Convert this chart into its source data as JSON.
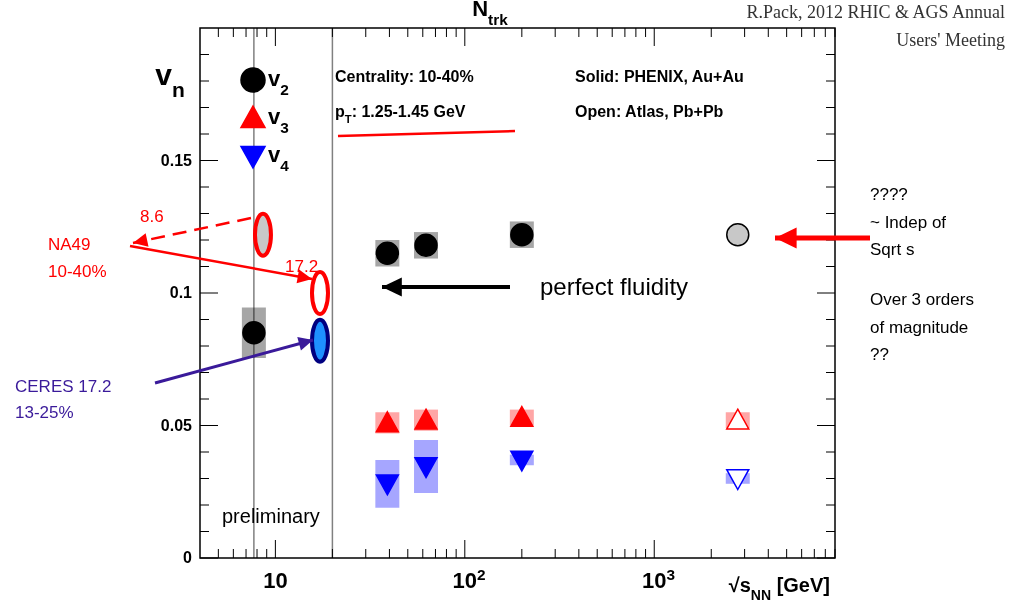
{
  "chart_data": {
    "type": "scatter",
    "title": "N$_{trk}$",
    "xlabel": "√s$_{NN}$ [GeV]",
    "ylabel": "v$_{n}$",
    "log": "x",
    "grid": false,
    "legend": "top left",
    "xlim": [
      4,
      9000
    ],
    "ylim": [
      0,
      0.2
    ],
    "xticks": [
      {
        "value": 5,
        "label": null
      },
      {
        "value": 6,
        "label": null
      },
      {
        "value": 7,
        "label": null
      },
      {
        "value": 8,
        "label": null
      },
      {
        "value": 9,
        "label": null
      },
      10,
      {
        "value": 20,
        "label": null
      },
      {
        "value": 30,
        "label": null
      },
      {
        "value": 40,
        "label": null
      },
      {
        "value": 50,
        "label": null
      },
      {
        "value": 60,
        "label": null
      },
      {
        "value": 70,
        "label": null
      },
      {
        "value": 80,
        "label": null
      },
      {
        "value": 90,
        "label": null
      },
      {
        "value": 100,
        "label": "10$^{2}$"
      },
      {
        "value": 200,
        "label": null
      },
      {
        "value": 300,
        "label": null
      },
      {
        "value": 400,
        "label": null
      },
      {
        "value": 500,
        "label": null
      },
      {
        "value": 600,
        "label": null
      },
      {
        "value": 700,
        "label": null
      },
      {
        "value": 800,
        "label": null
      },
      {
        "value": 900,
        "label": null
      },
      {
        "value": 1000,
        "label": "10$^{3}$"
      },
      {
        "value": 2000,
        "label": null
      },
      {
        "value": 3000,
        "label": null
      },
      {
        "value": 4000,
        "label": null
      },
      {
        "value": 5000,
        "label": null
      },
      {
        "value": 6000,
        "label": null
      },
      {
        "value": 7000,
        "label": null
      },
      {
        "value": 8000,
        "label": null
      },
      {
        "value": 9000,
        "label": null
      }
    ],
    "yticks": [
      0,
      {
        "value": 0.01,
        "label": null
      },
      {
        "value": 0.02,
        "label": null
      },
      {
        "value": 0.03,
        "label": null
      },
      {
        "value": 0.04,
        "label": null
      },
      0.05,
      {
        "value": 0.06,
        "label": null
      },
      {
        "value": 0.07,
        "label": null
      },
      {
        "value": 0.08,
        "label": null
      },
      {
        "value": 0.09,
        "label": null
      },
      0.1,
      {
        "value": 0.11,
        "label": null
      },
      {
        "value": 0.12,
        "label": null
      },
      {
        "value": 0.13,
        "label": null
      },
      {
        "value": 0.14,
        "label": null
      },
      0.15,
      {
        "value": 0.16,
        "label": null
      },
      {
        "value": 0.17,
        "label": null
      },
      {
        "value": 0.18,
        "label": null
      },
      {
        "value": 0.19,
        "label": null
      }
    ],
    "series": [
      {
        "name": "v$_{2}$",
        "marker": "circle",
        "color": "#000000",
        "x": [
          7.7,
          39,
          62.4,
          200
        ],
        "values": [
          0.085,
          0.115,
          0.118,
          0.122
        ],
        "errors": [
          0.0095,
          0.005,
          0.005,
          0.005
        ]
      },
      {
        "name": "v$_{3}$",
        "marker": "triangle",
        "color": "#ff0000",
        "x": [
          39,
          62.4,
          200
        ],
        "values": [
          0.051,
          0.052,
          0.053
        ],
        "errors": [
          0.004,
          0.004,
          0.003
        ]
      },
      {
        "name": "v$_{4}$",
        "marker": "triangle-down",
        "color": "#0000ff",
        "x": [
          39,
          62.4,
          200
        ],
        "values": [
          0.028,
          0.0345,
          0.037
        ],
        "errors": [
          0.009,
          0.01,
          0.002
        ]
      },
      {
        "marker": "circle",
        "color": "#c8c8c8",
        "x": [
          2760
        ],
        "values": [
          0.122
        ]
      },
      {
        "marker": "triangle",
        "color": "#ff0000",
        "colors": [
          "#ffffff"
        ],
        "x": [
          2760
        ],
        "values": [
          0.052
        ],
        "errors": [
          0.003
        ]
      },
      {
        "marker": "triangle-down",
        "color": "#0000ff",
        "colors": [
          "#ffffff"
        ],
        "x": [
          2760
        ],
        "values": [
          0.03
        ],
        "errors": [
          0.002
        ]
      },
      {
        "marker": "circle",
        "color": "#ff0000",
        "colors": [
          "#c8c8c8",
          "#ffffff"
        ],
        "x": [
          8.6,
          17.2
        ],
        "values": [
          0.122,
          0.1
        ]
      },
      {
        "marker": "circle",
        "color": "#000080",
        "colors": [
          "#1e90ff"
        ],
        "x": [
          17.2
        ],
        "values": [
          0.082
        ]
      }
    ],
    "ref_lines": [
      {
        "axis": "x",
        "value": 7.7,
        "color": "#808080"
      },
      {
        "axis": "x",
        "value": 20,
        "color": "#808080"
      }
    ],
    "annotations": [
      "Centrality: 10-40%",
      "p$_{T}$: 1.25-1.45 GeV",
      "Solid: PHENIX, Au+Au",
      "Open: Atlas, Pb+Pb",
      "perfect fluidity",
      "preliminary",
      "8.6",
      "17.2",
      "NA49",
      "10-40%",
      "CERES 17.2",
      "13-25%",
      "????",
      "~ Indep of",
      "Sqrt s",
      "Over 3 orders",
      "of magnitude",
      "??",
      "R.Pack, 2012 RHIC & AGS Annual",
      "Users' Meeting"
    ]
  }
}
